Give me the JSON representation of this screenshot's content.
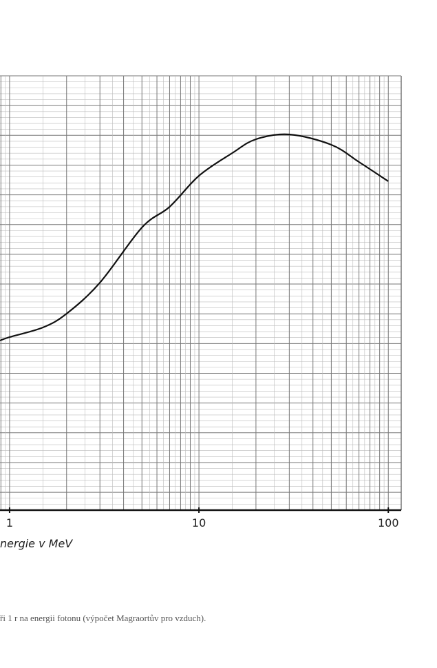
{
  "chart_data": {
    "type": "line",
    "x": [
      0.89,
      1,
      1.5,
      2,
      3,
      5,
      7,
      10,
      15,
      20,
      30,
      50,
      70,
      100
    ],
    "values": [
      246,
      251,
      265,
      285,
      330,
      410,
      440,
      485,
      518,
      538,
      545,
      530,
      505,
      477
    ],
    "color": "#111111",
    "xlim": [
      0.89,
      117
    ],
    "xticks": [
      1,
      10,
      100
    ],
    "xscale": "log",
    "ylim": [
      0,
      630
    ],
    "xlabel": "nergie v MeV",
    "caption": "ři 1 r na energii fotonu (výpočet Magraortův pro vzduch)."
  }
}
